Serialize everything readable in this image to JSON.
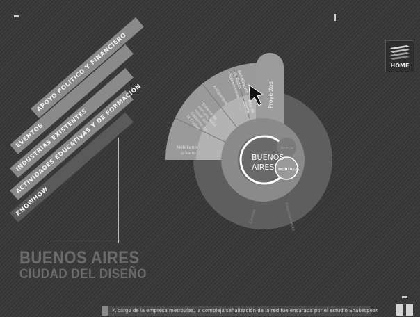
{
  "nav": {
    "items": [
      {
        "label": "APOYO POLITICO Y FINANCIERO"
      },
      {
        "label": "EVENTOS"
      },
      {
        "label": "INDUSTRIAS EXISTENTES"
      },
      {
        "label": "ACTIVIDADES EDUCATIVAS Y DE FORMACIÓN"
      },
      {
        "label": "KNOWHOW"
      }
    ]
  },
  "title": {
    "line1": "BUENOS AIRES",
    "line2": "CIUDAD DEL DISEÑO"
  },
  "home": {
    "label": "HOME"
  },
  "wheel": {
    "center_line1": "BUENOS",
    "center_line2": "AIRES",
    "city_berlin": "BERLIN",
    "city_montreal": "MONTREAL",
    "proyectos": "Proyectos",
    "sectors": {
      "mobiliario_1": "Mobiliario",
      "mobiliario_2": "urbano",
      "sistema_1": "Sistema de",
      "sistema_2": "comunicación",
      "sistema_3": "visual del",
      "sistema_4": "Gobierno de",
      "sistema_5": "la Ciudad",
      "antiparque": "Antiparque",
      "senal_1": "Señalización",
      "senal_2": "de Redes",
      "senal_3": "Subterráneas",
      "villa_1": "Villa de",
      "villa_2": "diseño",
      "centros": "Centros",
      "financiamiento": "Financiamiento"
    }
  },
  "caption": {
    "text": "A cargo de la empresa metrovías, la compleja señalización de la red fue encarada por el estudio Shakespear."
  },
  "colors": {
    "background": "#3a3a3a",
    "outer_ring": "#5e5e5e",
    "inner_disc": "#8a8a8a",
    "center_disc": "#6a6a6a",
    "fan_light": "#a8a8a8",
    "text_light": "#f0f0f0"
  }
}
